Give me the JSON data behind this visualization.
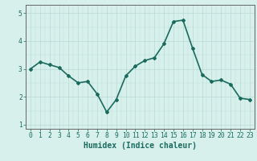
{
  "x": [
    0,
    1,
    2,
    3,
    4,
    5,
    6,
    7,
    8,
    9,
    10,
    11,
    12,
    13,
    14,
    15,
    16,
    17,
    18,
    19,
    20,
    21,
    22,
    23
  ],
  "y": [
    3.0,
    3.25,
    3.15,
    3.05,
    2.75,
    2.5,
    2.55,
    2.1,
    1.45,
    1.9,
    2.75,
    3.1,
    3.3,
    3.4,
    3.9,
    4.7,
    4.75,
    3.75,
    2.8,
    2.55,
    2.6,
    2.45,
    1.95,
    1.9
  ],
  "line_color": "#1a6b5e",
  "marker": "D",
  "marker_size": 2.0,
  "line_width": 1.2,
  "bg_color": "#d8f0ec",
  "grid_color_major": "#b8d8d4",
  "title": "",
  "xlabel": "Humidex (Indice chaleur)",
  "ylabel": "",
  "ylim": [
    0.85,
    5.3
  ],
  "xlim": [
    -0.5,
    23.5
  ],
  "yticks": [
    1,
    2,
    3,
    4,
    5
  ],
  "xticks": [
    0,
    1,
    2,
    3,
    4,
    5,
    6,
    7,
    8,
    9,
    10,
    11,
    12,
    13,
    14,
    15,
    16,
    17,
    18,
    19,
    20,
    21,
    22,
    23
  ],
  "tick_color": "#1a6b5e",
  "label_fontsize": 7.0,
  "tick_fontsize": 5.8,
  "spine_color": "#666666"
}
